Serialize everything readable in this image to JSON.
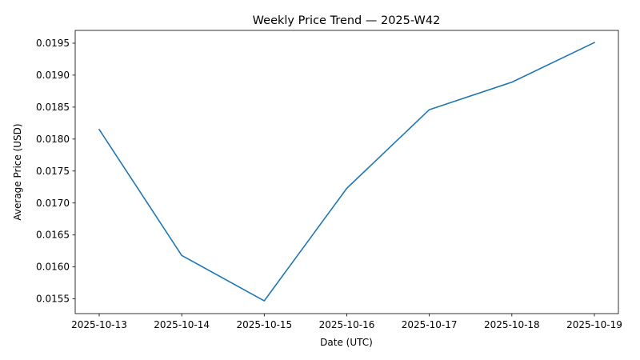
{
  "chart_data": {
    "type": "line",
    "title": "Weekly Price Trend — 2025-W42",
    "xlabel": "Date (UTC)",
    "ylabel": "Average Price (USD)",
    "x": [
      "2025-10-13",
      "2025-10-14",
      "2025-10-15",
      "2025-10-16",
      "2025-10-17",
      "2025-10-18",
      "2025-10-19"
    ],
    "series": [
      {
        "values": [
          0.01815,
          0.01618,
          0.01547,
          0.01723,
          0.01846,
          0.01889,
          0.01951
        ],
        "color": "#1f77b4"
      }
    ],
    "yticks": [
      "0.0155",
      "0.0160",
      "0.0165",
      "0.0170",
      "0.0175",
      "0.0180",
      "0.0185",
      "0.0190",
      "0.0195"
    ],
    "ylim": [
      0.01527,
      0.0197
    ],
    "grid": false,
    "legend": "none"
  }
}
